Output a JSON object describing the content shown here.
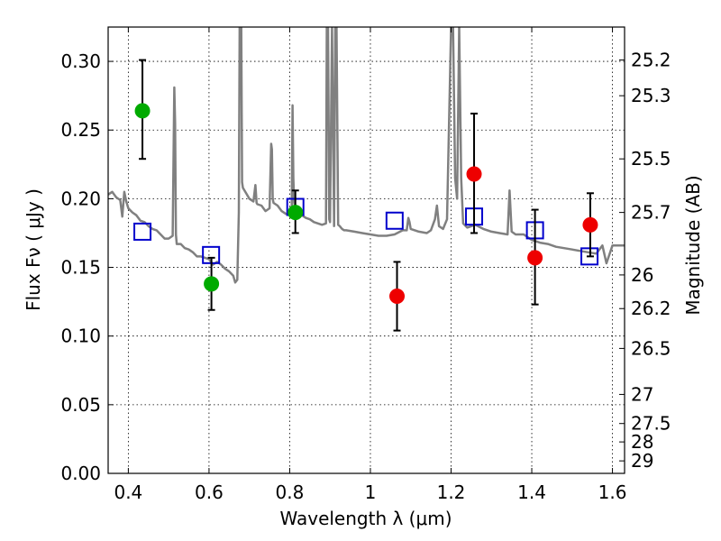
{
  "chart_data": {
    "type": "scatter",
    "xlabel": "Wavelength  λ (μm)",
    "ylabel": "Flux  Fν  ( μJy )",
    "ylabel_right": "Magnitude (AB)",
    "xlim": [
      0.35,
      1.63
    ],
    "ylim": [
      0.0,
      0.325
    ],
    "grid": true,
    "x_ticks": [
      0.4,
      0.6,
      0.8,
      1.0,
      1.2,
      1.4,
      1.6
    ],
    "x_tick_labels": [
      "0.4",
      "0.6",
      "0.8",
      "1",
      "1.2",
      "1.4",
      "1.6"
    ],
    "y_ticks": [
      0.0,
      0.05,
      0.1,
      0.15,
      0.2,
      0.25,
      0.3
    ],
    "y_tick_labels": [
      "0.00",
      "0.05",
      "0.10",
      "0.15",
      "0.20",
      "0.25",
      "0.30"
    ],
    "right_ticks": [
      {
        "label": "25.2",
        "flux": 0.301
      },
      {
        "label": "25.3",
        "flux": 0.275
      },
      {
        "label": "25.5",
        "flux": 0.229
      },
      {
        "label": "25.7",
        "flux": 0.19
      },
      {
        "label": "26",
        "flux": 0.1445
      },
      {
        "label": "26.2",
        "flux": 0.12
      },
      {
        "label": "26.5",
        "flux": 0.091
      },
      {
        "label": "27",
        "flux": 0.0575
      },
      {
        "label": "27.5",
        "flux": 0.0363
      },
      {
        "label": "28",
        "flux": 0.0229
      },
      {
        "label": "29",
        "flux": 0.0091
      }
    ],
    "series": [
      {
        "name": "model-spectrum",
        "kind": "line",
        "color": "#808080",
        "x": [
          0.35,
          0.36,
          0.37,
          0.38,
          0.385,
          0.39,
          0.395,
          0.4,
          0.41,
          0.42,
          0.43,
          0.44,
          0.45,
          0.46,
          0.47,
          0.48,
          0.49,
          0.5,
          0.51,
          0.514,
          0.516,
          0.518,
          0.52,
          0.53,
          0.54,
          0.55,
          0.56,
          0.57,
          0.58,
          0.59,
          0.6,
          0.61,
          0.62,
          0.63,
          0.64,
          0.65,
          0.66,
          0.665,
          0.67,
          0.674,
          0.676,
          0.68,
          0.682,
          0.684,
          0.69,
          0.7,
          0.71,
          0.715,
          0.718,
          0.72,
          0.73,
          0.74,
          0.75,
          0.754,
          0.756,
          0.758,
          0.76,
          0.77,
          0.78,
          0.79,
          0.8,
          0.805,
          0.807,
          0.809,
          0.811,
          0.815,
          0.82,
          0.83,
          0.84,
          0.85,
          0.86,
          0.87,
          0.88,
          0.89,
          0.892,
          0.895,
          0.898,
          0.9,
          0.905,
          0.91,
          0.913,
          0.916,
          0.92,
          0.924,
          0.927,
          0.93,
          0.935,
          0.94,
          0.96,
          0.98,
          1.0,
          1.02,
          1.04,
          1.06,
          1.08,
          1.09,
          1.094,
          1.097,
          1.1,
          1.12,
          1.14,
          1.15,
          1.16,
          1.165,
          1.17,
          1.18,
          1.19,
          1.2,
          1.203,
          1.205,
          1.21,
          1.215,
          1.22,
          1.225,
          1.23,
          1.24,
          1.26,
          1.28,
          1.3,
          1.32,
          1.34,
          1.345,
          1.35,
          1.36,
          1.38,
          1.4,
          1.42,
          1.44,
          1.46,
          1.48,
          1.5,
          1.52,
          1.54,
          1.56,
          1.575,
          1.585,
          1.6,
          1.63
        ],
        "y": [
          0.203,
          0.205,
          0.201,
          0.199,
          0.187,
          0.205,
          0.198,
          0.193,
          0.19,
          0.188,
          0.184,
          0.183,
          0.18,
          0.178,
          0.177,
          0.174,
          0.171,
          0.171,
          0.173,
          0.281,
          0.255,
          0.174,
          0.167,
          0.167,
          0.164,
          0.163,
          0.161,
          0.158,
          0.158,
          0.157,
          0.156,
          0.152,
          0.154,
          0.152,
          0.149,
          0.147,
          0.144,
          0.139,
          0.141,
          0.19,
          0.325,
          0.325,
          0.212,
          0.208,
          0.205,
          0.2,
          0.198,
          0.21,
          0.197,
          0.196,
          0.195,
          0.191,
          0.193,
          0.24,
          0.236,
          0.2,
          0.197,
          0.195,
          0.191,
          0.189,
          0.188,
          0.192,
          0.268,
          0.215,
          0.197,
          0.193,
          0.189,
          0.188,
          0.186,
          0.185,
          0.183,
          0.182,
          0.181,
          0.182,
          0.325,
          0.325,
          0.185,
          0.183,
          0.325,
          0.18,
          0.325,
          0.325,
          0.181,
          0.18,
          0.179,
          0.178,
          0.177,
          0.177,
          0.176,
          0.175,
          0.174,
          0.173,
          0.173,
          0.174,
          0.177,
          0.177,
          0.186,
          0.183,
          0.178,
          0.176,
          0.175,
          0.177,
          0.185,
          0.195,
          0.18,
          0.178,
          0.185,
          0.325,
          0.325,
          0.325,
          0.215,
          0.2,
          0.325,
          0.215,
          0.182,
          0.179,
          0.181,
          0.178,
          0.176,
          0.175,
          0.174,
          0.206,
          0.176,
          0.174,
          0.174,
          0.17,
          0.168,
          0.167,
          0.165,
          0.164,
          0.163,
          0.162,
          0.161,
          0.16,
          0.166,
          0.153,
          0.166,
          0.166
        ]
      },
      {
        "name": "model-photometry",
        "kind": "markers",
        "marker": "square",
        "color": "#0000cc",
        "x": [
          0.435,
          0.605,
          0.814,
          1.06,
          1.257,
          1.408,
          1.543
        ],
        "y": [
          0.176,
          0.159,
          0.194,
          0.184,
          0.187,
          0.177,
          0.158
        ]
      },
      {
        "name": "observed-green",
        "kind": "markers-with-errors",
        "marker": "circle",
        "color": "#00aa00",
        "x": [
          0.435,
          0.606,
          0.814
        ],
        "y": [
          0.264,
          0.138,
          0.19
        ],
        "yerr_low": [
          0.229,
          0.119,
          0.175
        ],
        "yerr_high": [
          0.301,
          0.157,
          0.206
        ]
      },
      {
        "name": "observed-red",
        "kind": "markers-with-errors",
        "marker": "circle",
        "color": "#ee0000",
        "x": [
          1.066,
          1.257,
          1.408,
          1.545
        ],
        "y": [
          0.129,
          0.218,
          0.157,
          0.181
        ],
        "yerr_low": [
          0.104,
          0.175,
          0.123,
          0.158
        ],
        "yerr_high": [
          0.154,
          0.262,
          0.192,
          0.204
        ]
      }
    ]
  }
}
